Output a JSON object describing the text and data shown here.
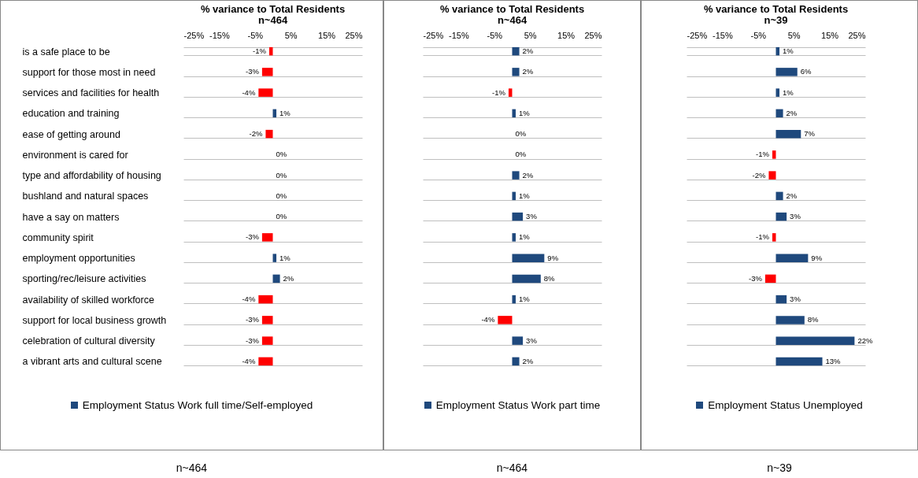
{
  "chart_data": [
    {
      "type": "bar",
      "orientation": "horizontal",
      "title": "% variance to Total Residents",
      "subtitle": "n~464",
      "categories": [
        "is a safe place to be",
        "support for those most in need",
        "services and facilities for health",
        "education and training",
        "ease of getting around",
        "environment is cared for",
        "type and affordability of housing",
        "bushland and natural spaces",
        "have a say on matters",
        "community spirit",
        "employment opportunities",
        "sporting/rec/leisure activities",
        "availability of skilled workforce",
        "support for local business growth",
        "celebration of cultural diversity",
        "a vibrant arts and cultural scene"
      ],
      "series": [
        {
          "name": "Employment Status Work full time/Self-employed",
          "color": "#1f497d",
          "values": [
            -1,
            -3,
            -4,
            1,
            -2,
            0,
            0,
            0,
            0,
            -3,
            1,
            2,
            -4,
            -3,
            -3,
            -4
          ],
          "colors": [
            "#ff0000",
            "#ff0000",
            "#ff0000",
            "#1f497d",
            "#ff0000",
            "#1f497d",
            "#1f497d",
            "#1f497d",
            "#1f497d",
            "#ff0000",
            "#1f497d",
            "#1f497d",
            "#ff0000",
            "#ff0000",
            "#ff0000",
            "#ff0000"
          ],
          "value_labels": [
            "-1%",
            "-3%",
            "-4%",
            "1%",
            "-2%",
            "0%",
            "0%",
            "0%",
            "0%",
            "-3%",
            "1%",
            "2%",
            "-4%",
            "-3%",
            "-3%",
            "-4%"
          ]
        }
      ],
      "xlim": [
        -25,
        25
      ],
      "xticks": [
        {
          "value": -25,
          "label": "-25%"
        },
        {
          "value": -15,
          "label": "-15%"
        },
        {
          "value": -5,
          "label": "-5%"
        },
        {
          "value": 5,
          "label": "5%"
        },
        {
          "value": 15,
          "label": "15%"
        },
        {
          "value": 25,
          "label": "25%"
        }
      ],
      "grid": "y",
      "legend": "bottom",
      "annotations": [
        "n~464"
      ]
    },
    {
      "type": "bar",
      "orientation": "horizontal",
      "title": "% variance to Total Residents",
      "subtitle": "n~464",
      "categories": [
        null,
        null,
        null,
        null,
        null,
        null,
        null,
        null,
        null,
        null,
        null,
        null,
        null,
        null,
        null,
        null
      ],
      "series": [
        {
          "name": "Employment Status Work part time",
          "color": "#1f497d",
          "values": [
            2,
            2,
            -1,
            1,
            0,
            0,
            2,
            1,
            3,
            1,
            9,
            8,
            1,
            -4,
            3,
            2
          ],
          "colors": [
            "#1f497d",
            "#1f497d",
            "#ff0000",
            "#1f497d",
            "#1f497d",
            "#1f497d",
            "#1f497d",
            "#1f497d",
            "#1f497d",
            "#1f497d",
            "#1f497d",
            "#1f497d",
            "#1f497d",
            "#ff0000",
            "#1f497d",
            "#1f497d"
          ],
          "value_labels": [
            "2%",
            "2%",
            "-1%",
            "1%",
            "0%",
            "0%",
            "2%",
            "1%",
            "3%",
            "1%",
            "9%",
            "8%",
            "1%",
            "-4%",
            "3%",
            "2%"
          ]
        }
      ],
      "xlim": [
        -25,
        25
      ],
      "xticks": [
        {
          "value": -25,
          "label": "-25%"
        },
        {
          "value": -15,
          "label": "-15%"
        },
        {
          "value": -5,
          "label": "-5%"
        },
        {
          "value": 5,
          "label": "5%"
        },
        {
          "value": 15,
          "label": "15%"
        },
        {
          "value": 25,
          "label": "25%"
        }
      ],
      "grid": "y",
      "legend": "bottom",
      "tick_labels": "x",
      "annotations": [
        "n~464"
      ]
    },
    {
      "type": "bar",
      "orientation": "horizontal",
      "title": "% variance to Total Residents",
      "subtitle": "n~39",
      "categories": [
        null,
        null,
        null,
        null,
        null,
        null,
        null,
        null,
        null,
        null,
        null,
        null,
        null,
        null,
        null,
        null
      ],
      "series": [
        {
          "name": "Employment Status Unemployed",
          "color": "#1f497d",
          "values": [
            1,
            6,
            1,
            2,
            7,
            -1,
            -2,
            2,
            3,
            -1,
            9,
            -3,
            3,
            8,
            22,
            13
          ],
          "colors": [
            "#1f497d",
            "#1f497d",
            "#1f497d",
            "#1f497d",
            "#1f497d",
            "#ff0000",
            "#ff0000",
            "#1f497d",
            "#1f497d",
            "#ff0000",
            "#1f497d",
            "#ff0000",
            "#1f497d",
            "#1f497d",
            "#1f497d",
            "#1f497d"
          ],
          "value_labels": [
            "1%",
            "6%",
            "1%",
            "2%",
            "7%",
            "-1%",
            "-2%",
            "2%",
            "3%",
            "-1%",
            "9%",
            "-3%",
            "3%",
            "8%",
            "22%",
            "13%"
          ]
        }
      ],
      "xlim": [
        -25,
        25
      ],
      "xticks": [
        {
          "value": -25,
          "label": "-25%"
        },
        {
          "value": -15,
          "label": "-15%"
        },
        {
          "value": -5,
          "label": "-5%"
        },
        {
          "value": 5,
          "label": "5%"
        },
        {
          "value": 15,
          "label": "15%"
        },
        {
          "value": 25,
          "label": "25%"
        }
      ],
      "grid": "y",
      "legend": "bottom",
      "tick_labels": "x",
      "annotations": [
        "n~39"
      ]
    }
  ]
}
